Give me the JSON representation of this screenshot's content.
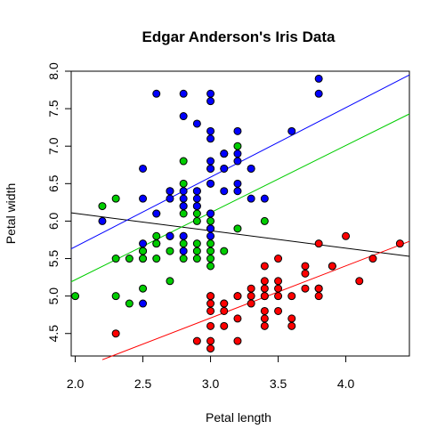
{
  "chart_data": {
    "type": "scatter",
    "title": "Edgar Anderson's Iris Data",
    "xlabel": "Petal length",
    "ylabel": "Petal width",
    "xlim": [
      1.97,
      4.47
    ],
    "ylim": [
      4.2,
      8.0
    ],
    "x_ticks": [
      2.0,
      2.5,
      3.0,
      3.5,
      4.0
    ],
    "x_tick_labels": [
      "2.0",
      "2.5",
      "3.0",
      "3.5",
      "4.0"
    ],
    "y_ticks": [
      4.5,
      5.0,
      5.5,
      6.0,
      6.5,
      7.0,
      7.5,
      8.0
    ],
    "y_tick_labels": [
      "4.5",
      "5.0",
      "5.5",
      "6.0",
      "6.5",
      "7.0",
      "7.5",
      "8.0"
    ],
    "grid": false,
    "series": [
      {
        "color": "#ff0000",
        "points": [
          [
            2.3,
            4.5
          ],
          [
            2.9,
            4.4
          ],
          [
            3.0,
            4.3
          ],
          [
            3.0,
            4.4
          ],
          [
            3.2,
            4.4
          ],
          [
            3.0,
            4.6
          ],
          [
            3.1,
            4.6
          ],
          [
            3.2,
            4.7
          ],
          [
            3.0,
            4.8
          ],
          [
            3.1,
            4.8
          ],
          [
            3.0,
            4.9
          ],
          [
            3.1,
            4.9
          ],
          [
            3.0,
            5.0
          ],
          [
            3.3,
            5.0
          ],
          [
            3.4,
            5.0
          ],
          [
            3.5,
            5.0
          ],
          [
            3.4,
            4.6
          ],
          [
            3.4,
            4.8
          ],
          [
            3.5,
            4.8
          ],
          [
            3.6,
            4.6
          ],
          [
            3.4,
            5.1
          ],
          [
            3.5,
            5.1
          ],
          [
            3.6,
            5.0
          ],
          [
            3.8,
            5.0
          ],
          [
            3.8,
            5.1
          ],
          [
            3.7,
            5.1
          ],
          [
            3.8,
            5.1
          ],
          [
            3.5,
            5.2
          ],
          [
            3.4,
            5.2
          ],
          [
            3.3,
            5.1
          ],
          [
            3.4,
            5.4
          ],
          [
            3.7,
            5.4
          ],
          [
            3.9,
            5.4
          ],
          [
            3.7,
            5.3
          ],
          [
            3.5,
            5.5
          ],
          [
            3.8,
            5.7
          ],
          [
            4.0,
            5.8
          ],
          [
            4.2,
            5.5
          ],
          [
            4.4,
            5.7
          ],
          [
            4.1,
            5.2
          ],
          [
            3.0,
            5.0
          ],
          [
            3.1,
            4.9
          ],
          [
            3.3,
            4.9
          ],
          [
            3.4,
            5.0
          ],
          [
            3.2,
            5.0
          ],
          [
            3.6,
            4.7
          ],
          [
            3.4,
            4.7
          ],
          [
            3.2,
            5.0
          ],
          [
            3.8,
            5.1
          ],
          [
            3.9,
            5.4
          ]
        ]
      },
      {
        "color": "#00cd00",
        "points": [
          [
            2.0,
            5.0
          ],
          [
            2.2,
            6.2
          ],
          [
            2.3,
            6.3
          ],
          [
            2.3,
            5.5
          ],
          [
            2.3,
            5.0
          ],
          [
            2.4,
            5.5
          ],
          [
            2.4,
            4.9
          ],
          [
            2.5,
            5.5
          ],
          [
            2.5,
            5.6
          ],
          [
            2.5,
            5.1
          ],
          [
            2.6,
            5.7
          ],
          [
            2.6,
            5.5
          ],
          [
            2.6,
            5.8
          ],
          [
            2.7,
            5.8
          ],
          [
            2.7,
            5.2
          ],
          [
            2.7,
            5.6
          ],
          [
            2.8,
            6.8
          ],
          [
            2.8,
            6.5
          ],
          [
            2.8,
            6.1
          ],
          [
            2.8,
            5.7
          ],
          [
            2.8,
            5.8
          ],
          [
            2.9,
            6.4
          ],
          [
            2.9,
            6.2
          ],
          [
            2.9,
            6.0
          ],
          [
            2.9,
            5.7
          ],
          [
            2.9,
            5.6
          ],
          [
            3.0,
            6.7
          ],
          [
            3.0,
            6.1
          ],
          [
            3.0,
            6.0
          ],
          [
            3.0,
            5.9
          ],
          [
            3.0,
            5.7
          ],
          [
            3.0,
            5.6
          ],
          [
            3.0,
            5.4
          ],
          [
            3.1,
            6.7
          ],
          [
            3.1,
            6.9
          ],
          [
            3.2,
            7.0
          ],
          [
            3.2,
            5.9
          ],
          [
            3.3,
            6.7
          ],
          [
            3.4,
            6.0
          ],
          [
            3.0,
            5.5
          ],
          [
            2.9,
            5.5
          ],
          [
            2.8,
            5.5
          ],
          [
            2.5,
            5.6
          ],
          [
            2.7,
            5.8
          ],
          [
            2.9,
            6.1
          ],
          [
            3.1,
            5.6
          ],
          [
            2.8,
            6.2
          ],
          [
            3.0,
            6.1
          ],
          [
            2.6,
            5.7
          ],
          [
            2.5,
            5.5
          ]
        ]
      },
      {
        "color": "#0000ff",
        "points": [
          [
            2.2,
            6.0
          ],
          [
            2.5,
            6.7
          ],
          [
            2.5,
            6.3
          ],
          [
            2.5,
            5.7
          ],
          [
            2.5,
            4.9
          ],
          [
            2.6,
            7.7
          ],
          [
            2.6,
            6.1
          ],
          [
            2.7,
            6.4
          ],
          [
            2.7,
            6.3
          ],
          [
            2.7,
            5.8
          ],
          [
            2.8,
            7.7
          ],
          [
            2.8,
            7.4
          ],
          [
            2.8,
            6.4
          ],
          [
            2.8,
            6.3
          ],
          [
            2.8,
            6.2
          ],
          [
            2.8,
            5.6
          ],
          [
            2.9,
            7.3
          ],
          [
            2.9,
            6.3
          ],
          [
            3.0,
            7.7
          ],
          [
            3.0,
            7.6
          ],
          [
            3.0,
            7.2
          ],
          [
            3.0,
            6.8
          ],
          [
            3.0,
            6.7
          ],
          [
            3.0,
            6.5
          ],
          [
            3.0,
            6.1
          ],
          [
            3.1,
            6.9
          ],
          [
            3.1,
            6.7
          ],
          [
            3.1,
            6.4
          ],
          [
            3.2,
            7.2
          ],
          [
            3.2,
            6.9
          ],
          [
            3.2,
            6.8
          ],
          [
            3.2,
            6.5
          ],
          [
            3.2,
            6.4
          ],
          [
            3.3,
            6.7
          ],
          [
            3.3,
            6.3
          ],
          [
            3.4,
            6.3
          ],
          [
            3.6,
            7.2
          ],
          [
            3.8,
            7.9
          ],
          [
            3.8,
            7.7
          ],
          [
            2.9,
            6.4
          ],
          [
            3.0,
            5.8
          ],
          [
            2.7,
            5.8
          ],
          [
            3.0,
            5.9
          ],
          [
            2.8,
            5.8
          ],
          [
            2.7,
            6.4
          ],
          [
            3.1,
            6.9
          ],
          [
            3.0,
            7.1
          ],
          [
            2.6,
            6.1
          ],
          [
            2.9,
            6.2
          ],
          [
            3.0,
            6.5
          ]
        ]
      }
    ],
    "regression_lines": [
      {
        "color": "#000000",
        "x": [
          1.97,
          4.47
        ],
        "y": [
          6.11,
          5.53
        ]
      },
      {
        "color": "#ff0000",
        "x": [
          2.2,
          4.47
        ],
        "y": [
          4.15,
          5.73
        ]
      },
      {
        "color": "#00cd00",
        "x": [
          1.97,
          4.47
        ],
        "y": [
          5.19,
          7.43
        ]
      },
      {
        "color": "#0000ff",
        "x": [
          1.97,
          4.47
        ],
        "y": [
          5.63,
          7.95
        ]
      }
    ]
  }
}
